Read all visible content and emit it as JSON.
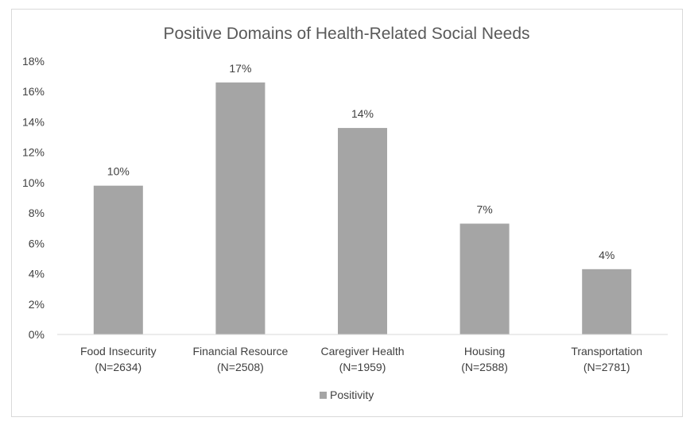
{
  "chart_data": {
    "type": "bar",
    "title": "Positive Domains of Health-Related Social Needs",
    "xlabel": "",
    "ylabel": "",
    "ylim": [
      0,
      18
    ],
    "y_ticks": [
      "0%",
      "2%",
      "4%",
      "6%",
      "8%",
      "10%",
      "12%",
      "14%",
      "16%",
      "18%"
    ],
    "categories": [
      {
        "name": "Food Insecurity",
        "n": "(N=2634)"
      },
      {
        "name": "Financial Resource",
        "n": "(N=2508)"
      },
      {
        "name": "Caregiver Health",
        "n": "(N=1959)"
      },
      {
        "name": "Housing",
        "n": "(N=2588)"
      },
      {
        "name": "Transportation",
        "n": "(N=2781)"
      }
    ],
    "series": [
      {
        "name": "Positivity",
        "values": [
          9.8,
          16.6,
          13.6,
          7.3,
          4.3
        ],
        "data_labels": [
          "10%",
          "17%",
          "14%",
          "7%",
          "4%"
        ],
        "color": "#a5a5a5"
      }
    ],
    "grid": false,
    "legend_position": "bottom"
  }
}
